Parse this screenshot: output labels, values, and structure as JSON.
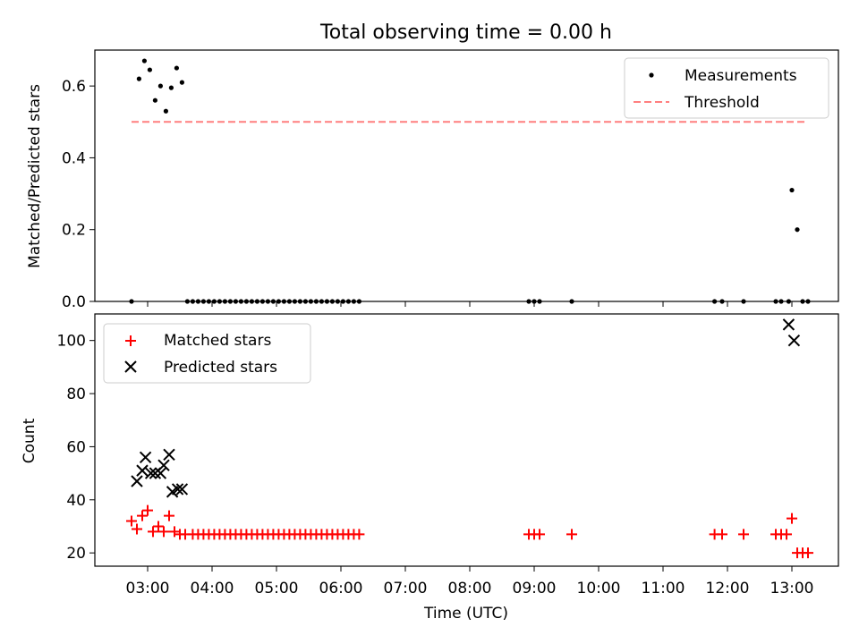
{
  "title": "Total observing time = 0.00 h",
  "xlabel": "Time (UTC)",
  "x_ticks": [
    "03:00",
    "04:00",
    "05:00",
    "06:00",
    "07:00",
    "08:00",
    "09:00",
    "10:00",
    "11:00",
    "12:00",
    "13:00"
  ],
  "chart_data": [
    {
      "type": "scatter",
      "ylabel": "Matched/Predicted stars",
      "ylim": [
        0,
        0.7
      ],
      "yticks": [
        "0.0",
        "0.2",
        "0.4",
        "0.6"
      ],
      "legend": {
        "placement": "top-right",
        "entries": [
          "Measurements",
          "Threshold"
        ]
      },
      "series": [
        {
          "name": "Measurements",
          "marker": "dot",
          "color": "#000000",
          "x": [
            "02:45",
            "02:52",
            "02:57",
            "03:02",
            "03:07",
            "03:12",
            "03:17",
            "03:22",
            "03:27",
            "03:32",
            "03:37",
            "03:42",
            "03:47",
            "03:52",
            "03:57",
            "04:02",
            "04:07",
            "04:12",
            "04:17",
            "04:22",
            "04:27",
            "04:32",
            "04:37",
            "04:42",
            "04:47",
            "04:52",
            "04:57",
            "05:02",
            "05:07",
            "05:12",
            "05:17",
            "05:22",
            "05:27",
            "05:32",
            "05:37",
            "05:42",
            "05:47",
            "05:52",
            "05:57",
            "06:02",
            "06:07",
            "06:12",
            "06:17",
            "08:55",
            "09:00",
            "09:05",
            "09:35",
            "11:48",
            "11:55",
            "12:15",
            "12:45",
            "12:50",
            "12:57",
            "13:00",
            "13:05",
            "13:10",
            "13:15"
          ],
          "y": [
            0.0,
            0.62,
            0.67,
            0.645,
            0.56,
            0.6,
            0.53,
            0.595,
            0.65,
            0.61,
            0.0,
            0.0,
            0.0,
            0.0,
            0.0,
            0.0,
            0.0,
            0.0,
            0.0,
            0.0,
            0.0,
            0.0,
            0.0,
            0.0,
            0.0,
            0.0,
            0.0,
            0.0,
            0.0,
            0.0,
            0.0,
            0.0,
            0.0,
            0.0,
            0.0,
            0.0,
            0.0,
            0.0,
            0.0,
            0.0,
            0.0,
            0.0,
            0.0,
            0.0,
            0.0,
            0.0,
            0.0,
            0.0,
            0.0,
            0.0,
            0.0,
            0.0,
            0.0,
            0.31,
            0.2,
            0.0,
            0.0
          ]
        },
        {
          "name": "Threshold",
          "marker": "dashed-line",
          "color": "#ff7f7f",
          "x": [
            "02:45",
            "13:15"
          ],
          "y": [
            0.5,
            0.5
          ]
        }
      ]
    },
    {
      "type": "scatter",
      "ylabel": "Count",
      "ylim": [
        15,
        110
      ],
      "yticks": [
        "20",
        "40",
        "60",
        "80",
        "100"
      ],
      "legend": {
        "placement": "top-left",
        "entries": [
          "Matched stars",
          "Predicted stars"
        ]
      },
      "series": [
        {
          "name": "Matched stars",
          "marker": "plus",
          "color": "#ff0000",
          "x": [
            "02:45",
            "02:50",
            "02:55",
            "03:00",
            "03:05",
            "03:10",
            "03:15",
            "03:20",
            "03:25",
            "03:30",
            "03:35",
            "03:42",
            "03:47",
            "03:52",
            "03:57",
            "04:02",
            "04:07",
            "04:12",
            "04:17",
            "04:22",
            "04:27",
            "04:32",
            "04:37",
            "04:42",
            "04:47",
            "04:52",
            "04:57",
            "05:02",
            "05:07",
            "05:12",
            "05:17",
            "05:22",
            "05:27",
            "05:32",
            "05:37",
            "05:42",
            "05:47",
            "05:52",
            "05:57",
            "06:02",
            "06:07",
            "06:12",
            "06:17",
            "08:55",
            "09:00",
            "09:05",
            "09:35",
            "11:48",
            "11:55",
            "12:15",
            "12:45",
            "12:50",
            "12:55",
            "13:00",
            "13:05",
            "13:10",
            "13:15"
          ],
          "y": [
            32,
            29,
            34,
            36,
            28,
            30,
            28,
            34,
            28,
            27,
            27,
            27,
            27,
            27,
            27,
            27,
            27,
            27,
            27,
            27,
            27,
            27,
            27,
            27,
            27,
            27,
            27,
            27,
            27,
            27,
            27,
            27,
            27,
            27,
            27,
            27,
            27,
            27,
            27,
            27,
            27,
            27,
            27,
            27,
            27,
            27,
            27,
            27,
            27,
            27,
            27,
            27,
            27,
            33,
            20,
            20,
            20
          ]
        },
        {
          "name": "Predicted stars",
          "marker": "x",
          "color": "#000000",
          "x": [
            "02:50",
            "02:55",
            "02:58",
            "03:03",
            "03:07",
            "03:12",
            "03:15",
            "03:20",
            "03:23",
            "03:28",
            "03:32",
            "12:57",
            "13:02"
          ],
          "y": [
            47,
            51,
            56,
            50,
            50,
            50,
            53,
            57,
            43,
            44,
            44,
            106,
            100
          ]
        }
      ]
    }
  ]
}
